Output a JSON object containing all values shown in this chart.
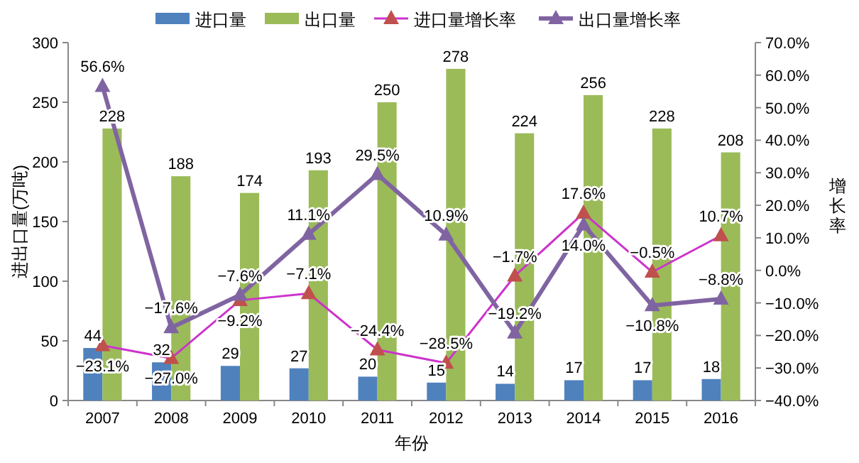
{
  "chart_data": {
    "type": "bar",
    "categories": [
      "2007",
      "2008",
      "2009",
      "2010",
      "2011",
      "2012",
      "2013",
      "2014",
      "2015",
      "2016"
    ],
    "xlabel": "年份",
    "ylabel": "进出口量(万吨)",
    "y2label": "增长率",
    "ylim": [
      0,
      300
    ],
    "yticks": [
      0,
      50,
      100,
      150,
      200,
      250,
      300
    ],
    "y2lim": [
      -40,
      70
    ],
    "y2ticks": [
      {
        "value": -40,
        "label": "−40.0%"
      },
      {
        "value": -30,
        "label": "−30.0%"
      },
      {
        "value": -20,
        "label": "−20.0%"
      },
      {
        "value": -10,
        "label": "−10.0%"
      },
      {
        "value": 0,
        "label": "0.0%"
      },
      {
        "value": 10,
        "label": "10.0%"
      },
      {
        "value": 20,
        "label": "20.0%"
      },
      {
        "value": 30,
        "label": "30.0%"
      },
      {
        "value": 40,
        "label": "40.0%"
      },
      {
        "value": 50,
        "label": "50.0%"
      },
      {
        "value": 60,
        "label": "60.0%"
      },
      {
        "value": 70,
        "label": "70.0%"
      }
    ],
    "legend": "top",
    "grid": false,
    "data_labels": true,
    "series": [
      {
        "name": "进口量",
        "color": "#4f81bd",
        "values": [
          44,
          32,
          29,
          27,
          20,
          15,
          14,
          17,
          17,
          18
        ]
      },
      {
        "name": "出口量",
        "color": "#9bbb59",
        "values": [
          228,
          188,
          174,
          193,
          250,
          278,
          224,
          256,
          228,
          208
        ]
      },
      {
        "name": "进口量增长率",
        "type": "line",
        "axis": "y2",
        "color": "#cc33cc",
        "marker": "triangle",
        "colors": [
          "#c0504d",
          "#c0504d",
          "#c0504d",
          "#c0504d",
          "#c0504d",
          "#c0504d",
          "#c0504d",
          "#c0504d",
          "#c0504d",
          "#c0504d"
        ],
        "values": [
          -23.1,
          -27.0,
          -9.2,
          -7.1,
          -24.4,
          -28.5,
          -1.7,
          17.6,
          -0.5,
          10.7
        ],
        "value_labels": [
          "−23.1%",
          "−27.0%",
          "−9.2%",
          "−7.1%",
          "−24.4%",
          "−28.5%",
          "−1.7%",
          "17.6%",
          "−0.5%",
          "10.7%"
        ]
      },
      {
        "name": "出口量增长率",
        "type": "line",
        "axis": "y2",
        "color": "#8064a2",
        "marker": "triangle",
        "values": [
          56.6,
          -17.6,
          -7.6,
          11.1,
          29.5,
          10.9,
          -19.2,
          14.0,
          -10.8,
          -8.8
        ],
        "value_labels": [
          "56.6%",
          "−17.6%",
          "−7.6%",
          "11.1%",
          "29.5%",
          "10.9%",
          "−19.2%",
          "14.0%",
          "−10.8%",
          "−8.8%"
        ]
      }
    ]
  }
}
